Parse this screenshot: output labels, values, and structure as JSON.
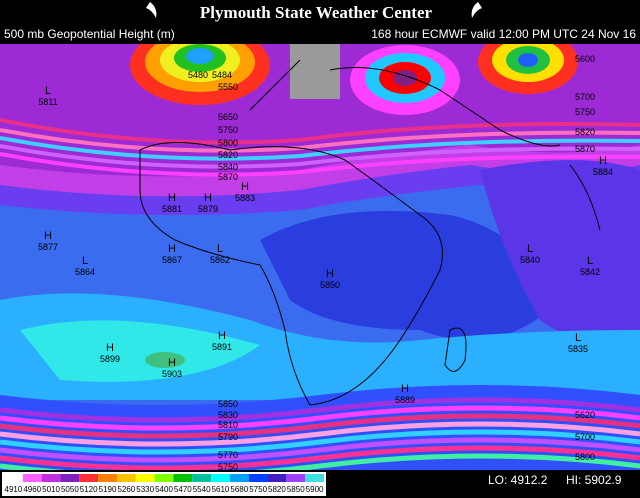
{
  "header": {
    "title": "Plymouth State Weather Center"
  },
  "map": {
    "title_left": "500 mb Geopotential Height (m)",
    "title_right": "168 hour ECMWF valid 12:00 PM UTC 24 Nov 16",
    "systems": [
      {
        "letter": "L",
        "value": "5811"
      },
      {
        "letter": "H",
        "value": "5884"
      },
      {
        "letter": "H",
        "value": "5877"
      },
      {
        "letter": "L",
        "value": "5864"
      },
      {
        "letter": "H",
        "value": "5867"
      },
      {
        "letter": "L",
        "value": "5862"
      },
      {
        "letter": "H",
        "value": "5883"
      },
      {
        "letter": "H",
        "value": "5881"
      },
      {
        "letter": "H",
        "value": "5879"
      },
      {
        "letter": "H",
        "value": "5850"
      },
      {
        "letter": "L",
        "value": "5840"
      },
      {
        "letter": "L",
        "value": "5842"
      },
      {
        "letter": "H",
        "value": "5899"
      },
      {
        "letter": "H",
        "value": "5891"
      },
      {
        "letter": "H",
        "value": "5903"
      },
      {
        "letter": "H",
        "value": "5889"
      },
      {
        "letter": "L",
        "value": "5835"
      }
    ],
    "contour_labels": [
      "5480",
      "5484",
      "5550",
      "5650",
      "5750",
      "5800",
      "5820",
      "5840",
      "5870",
      "5600",
      "5700",
      "5750",
      "5820",
      "5870",
      "5850",
      "5830",
      "5810",
      "5790",
      "5770",
      "5750",
      "5620",
      "5700",
      "5800"
    ],
    "colorbar_labels": [
      "4910",
      "4960",
      "5010",
      "5050",
      "5120",
      "5190",
      "5260",
      "5330",
      "5400",
      "5470",
      "5540",
      "5610",
      "5680",
      "5750",
      "5820",
      "5850",
      "5900"
    ],
    "lo": "LO: 4912.2",
    "hi": "HI: 5902.9"
  }
}
